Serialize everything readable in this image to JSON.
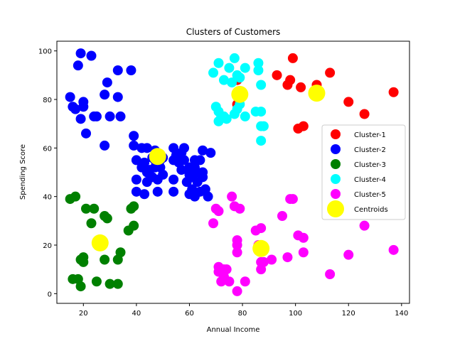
{
  "chart_data": {
    "type": "scatter",
    "title": "Clusters of Customers",
    "xlabel": "Annual Income",
    "ylabel": "Spending Score",
    "xlim": [
      10,
      143
    ],
    "ylim": [
      -4,
      104
    ],
    "xticks": [
      20,
      40,
      60,
      80,
      100,
      120,
      140
    ],
    "yticks": [
      0,
      20,
      40,
      60,
      80,
      100
    ],
    "grid": false,
    "legend_position": "center-right",
    "series": [
      {
        "name": "Cluster-1",
        "color": "#ff0000",
        "points": [
          [
            93,
            90
          ],
          [
            99,
            97
          ],
          [
            97,
            86
          ],
          [
            98,
            88
          ],
          [
            101,
            68
          ],
          [
            102,
            85
          ],
          [
            103,
            69
          ],
          [
            108,
            86
          ],
          [
            113,
            91
          ],
          [
            120,
            79
          ],
          [
            126,
            74
          ],
          [
            137,
            83
          ],
          [
            78,
            78
          ],
          [
            78,
            88
          ]
        ]
      },
      {
        "name": "Cluster-2",
        "color": "#0000ff",
        "points": [
          [
            15,
            81
          ],
          [
            16,
            77
          ],
          [
            17,
            76
          ],
          [
            18,
            94
          ],
          [
            19,
            99
          ],
          [
            19,
            72
          ],
          [
            20,
            77
          ],
          [
            20,
            79
          ],
          [
            21,
            66
          ],
          [
            23,
            98
          ],
          [
            24,
            73
          ],
          [
            25,
            73
          ],
          [
            28,
            82
          ],
          [
            28,
            61
          ],
          [
            29,
            87
          ],
          [
            30,
            73
          ],
          [
            33,
            81
          ],
          [
            33,
            92
          ],
          [
            34,
            73
          ],
          [
            38,
            92
          ],
          [
            39,
            65
          ],
          [
            39,
            61
          ],
          [
            40,
            55
          ],
          [
            40,
            47
          ],
          [
            40,
            42
          ],
          [
            42,
            52
          ],
          [
            42,
            60
          ],
          [
            43,
            54
          ],
          [
            43,
            41
          ],
          [
            44,
            60
          ],
          [
            44,
            50
          ],
          [
            44,
            46
          ],
          [
            45,
            51
          ],
          [
            46,
            56
          ],
          [
            46,
            48
          ],
          [
            47,
            52
          ],
          [
            47,
            55
          ],
          [
            47,
            59
          ],
          [
            48,
            47
          ],
          [
            48,
            42
          ],
          [
            49,
            55
          ],
          [
            49,
            52
          ],
          [
            50,
            49
          ],
          [
            50,
            56
          ],
          [
            54,
            60
          ],
          [
            54,
            55
          ],
          [
            54,
            47
          ],
          [
            54,
            42
          ],
          [
            55,
            57
          ],
          [
            56,
            54
          ],
          [
            57,
            58
          ],
          [
            57,
            51
          ],
          [
            58,
            55
          ],
          [
            58,
            60
          ],
          [
            59,
            46
          ],
          [
            60,
            52
          ],
          [
            60,
            41
          ],
          [
            60,
            49
          ],
          [
            61,
            48
          ],
          [
            61,
            43
          ],
          [
            62,
            40
          ],
          [
            62,
            52
          ],
          [
            62,
            55
          ],
          [
            63,
            50
          ],
          [
            63,
            46
          ],
          [
            64,
            42
          ],
          [
            64,
            55
          ],
          [
            65,
            48
          ],
          [
            65,
            50
          ],
          [
            65,
            59
          ],
          [
            66,
            43
          ],
          [
            67,
            40
          ],
          [
            68,
            58
          ]
        ]
      },
      {
        "name": "Cluster-3",
        "color": "#008000",
        "points": [
          [
            15,
            39
          ],
          [
            16,
            6
          ],
          [
            17,
            40
          ],
          [
            18,
            6
          ],
          [
            19,
            3
          ],
          [
            19,
            14
          ],
          [
            20,
            15
          ],
          [
            20,
            13
          ],
          [
            21,
            35
          ],
          [
            23,
            29
          ],
          [
            24,
            35
          ],
          [
            25,
            5
          ],
          [
            28,
            14
          ],
          [
            28,
            32
          ],
          [
            29,
            31
          ],
          [
            30,
            4
          ],
          [
            33,
            4
          ],
          [
            33,
            14
          ],
          [
            34,
            17
          ],
          [
            37,
            26
          ],
          [
            38,
            35
          ],
          [
            39,
            36
          ],
          [
            39,
            28
          ]
        ]
      },
      {
        "name": "Cluster-4",
        "color": "#00ffff",
        "points": [
          [
            69,
            91
          ],
          [
            70,
            77
          ],
          [
            71,
            95
          ],
          [
            71,
            75
          ],
          [
            71,
            71
          ],
          [
            72,
            73
          ],
          [
            73,
            88
          ],
          [
            73,
            73
          ],
          [
            74,
            72
          ],
          [
            75,
            93
          ],
          [
            76,
            87
          ],
          [
            77,
            97
          ],
          [
            77,
            74
          ],
          [
            78,
            90
          ],
          [
            78,
            76
          ],
          [
            79,
            89
          ],
          [
            79,
            78
          ],
          [
            81,
            73
          ],
          [
            81,
            93
          ],
          [
            85,
            75
          ],
          [
            86,
            95
          ],
          [
            86,
            92
          ],
          [
            87,
            75
          ],
          [
            87,
            69
          ],
          [
            87,
            63
          ],
          [
            87,
            86
          ],
          [
            88,
            69
          ]
        ]
      },
      {
        "name": "Cluster-5",
        "color": "#ff00ff",
        "points": [
          [
            69,
            29
          ],
          [
            70,
            35
          ],
          [
            71,
            11
          ],
          [
            71,
            9
          ],
          [
            71,
            34
          ],
          [
            72,
            5
          ],
          [
            73,
            7
          ],
          [
            73,
            10
          ],
          [
            74,
            10
          ],
          [
            75,
            5
          ],
          [
            76,
            40
          ],
          [
            77,
            36
          ],
          [
            78,
            1
          ],
          [
            78,
            22
          ],
          [
            78,
            17
          ],
          [
            78,
            20
          ],
          [
            79,
            35
          ],
          [
            81,
            5
          ],
          [
            85,
            26
          ],
          [
            86,
            20
          ],
          [
            87,
            27
          ],
          [
            87,
            13
          ],
          [
            87,
            10
          ],
          [
            88,
            13
          ],
          [
            91,
            14
          ],
          [
            95,
            32
          ],
          [
            97,
            15
          ],
          [
            98,
            39
          ],
          [
            99,
            39
          ],
          [
            101,
            24
          ],
          [
            103,
            17
          ],
          [
            103,
            23
          ],
          [
            113,
            8
          ],
          [
            120,
            16
          ],
          [
            126,
            28
          ],
          [
            137,
            18
          ]
        ]
      },
      {
        "name": "Centroids",
        "color": "#ffff00",
        "points": [
          [
            108.0,
            82.6
          ],
          [
            48.0,
            56.5
          ],
          [
            26.3,
            20.9
          ],
          [
            79.0,
            82.1
          ],
          [
            87.0,
            18.6
          ]
        ]
      }
    ]
  }
}
